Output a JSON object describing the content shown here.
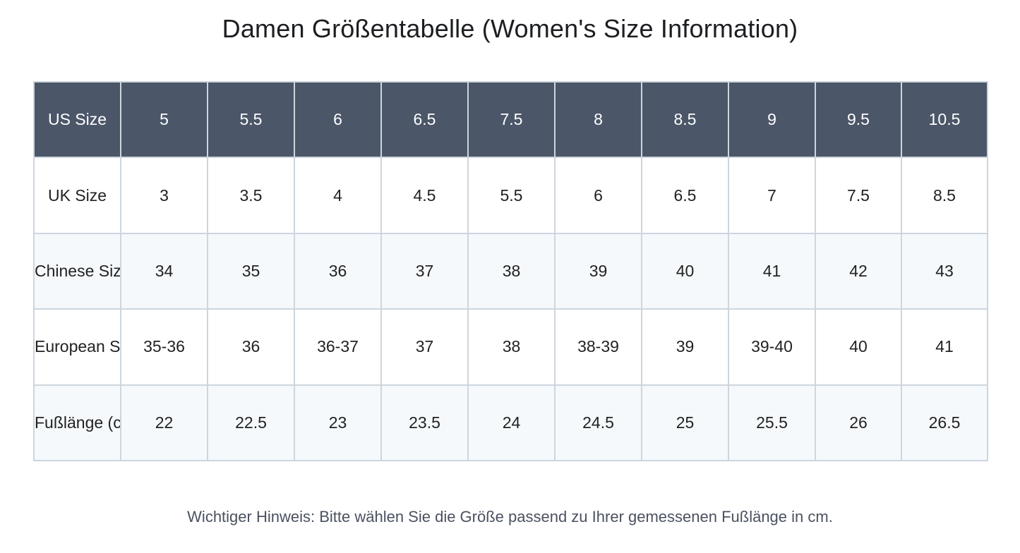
{
  "title": "Damen Größentabelle (Women's Size Information)",
  "table": {
    "rows": [
      {
        "label": "US Size",
        "cells": [
          "5",
          "5.5",
          "6",
          "6.5",
          "7.5",
          "8",
          "8.5",
          "9",
          "9.5",
          "10.5"
        ]
      },
      {
        "label": "UK Size",
        "cells": [
          "3",
          "3.5",
          "4",
          "4.5",
          "5.5",
          "6",
          "6.5",
          "7",
          "7.5",
          "8.5"
        ]
      },
      {
        "label": "Chinese Size",
        "cells": [
          "34",
          "35",
          "36",
          "37",
          "38",
          "39",
          "40",
          "41",
          "42",
          "43"
        ]
      },
      {
        "label": "European Size",
        "cells": [
          "35-36",
          "36",
          "36-37",
          "37",
          "38",
          "38-39",
          "39",
          "39-40",
          "40",
          "41"
        ]
      },
      {
        "label": "Fußlänge (cm)",
        "cells": [
          "22",
          "22.5",
          "23",
          "23.5",
          "24",
          "24.5",
          "25",
          "25.5",
          "26",
          "26.5"
        ]
      }
    ]
  },
  "note": "Wichtiger Hinweis: Bitte wählen Sie die Größe passend zu Ihrer gemessenen Fußlänge in cm.",
  "colors": {
    "header_bg": "#4b5668",
    "border": "#cdd5de",
    "tint_row": "#f5f9fc"
  }
}
